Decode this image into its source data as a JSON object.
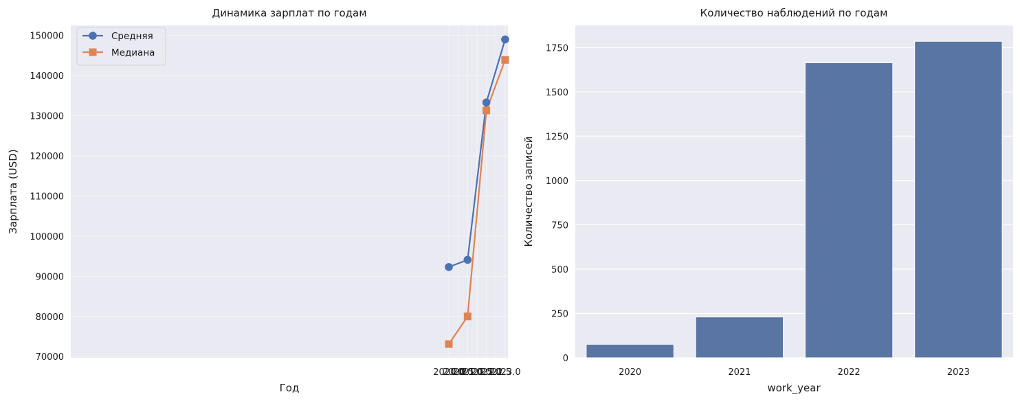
{
  "chart_data": [
    {
      "type": "line",
      "title": "Динамика зарплат по годам",
      "xlabel": "Год",
      "ylabel": "Зарплата (USD)",
      "xlim": [
        1999.85,
        2023.15
      ],
      "ylim": [
        69700,
        152500
      ],
      "x_ticks": [
        2020.0,
        2020.5,
        2021.0,
        2021.5,
        2022.0,
        2022.5,
        2023.0
      ],
      "x_tick_labels": [
        "2020.0",
        "2020.5",
        "2021.0",
        "2021.5",
        "2022.0",
        "2022.5",
        "2023.0"
      ],
      "y_ticks": [
        70000,
        80000,
        90000,
        100000,
        110000,
        120000,
        130000,
        140000,
        150000
      ],
      "y_tick_labels": [
        "70000",
        "80000",
        "90000",
        "100000",
        "110000",
        "120000",
        "130000",
        "140000",
        "150000"
      ],
      "grid": true,
      "legend_position": "top-left",
      "x": [
        2020,
        2021,
        2022,
        2023
      ],
      "series": [
        {
          "name": "Средняя",
          "values": [
            92300,
            94100,
            133300,
            149000
          ],
          "color": "#4c72b0",
          "marker": "circle"
        },
        {
          "name": "Медиана",
          "values": [
            73100,
            80000,
            131300,
            143900
          ],
          "color": "#dd8452",
          "marker": "square"
        }
      ]
    },
    {
      "type": "bar",
      "title": "Количество наблюдений по годам",
      "xlabel": "work_year",
      "ylabel": "Количество записей",
      "categories": [
        "2020",
        "2021",
        "2022",
        "2023"
      ],
      "values": [
        76,
        230,
        1664,
        1785
      ],
      "ylim": [
        0,
        1875
      ],
      "y_ticks": [
        0,
        250,
        500,
        750,
        1000,
        1250,
        1500,
        1750
      ],
      "y_tick_labels": [
        "0",
        "250",
        "500",
        "750",
        "1000",
        "1250",
        "1500",
        "1750"
      ],
      "grid": true,
      "color": "#5875a4"
    }
  ]
}
